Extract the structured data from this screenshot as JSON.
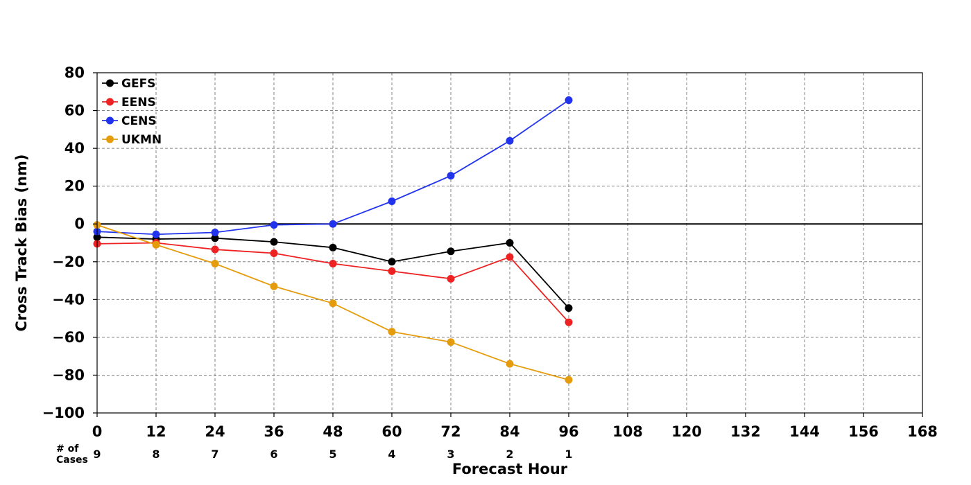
{
  "chart_data": {
    "type": "line",
    "title": "",
    "xlabel": "Forecast Hour",
    "ylabel": "Cross Track Bias (nm)",
    "xlim": [
      0,
      168
    ],
    "ylim": [
      -100,
      80
    ],
    "x_ticks": [
      0,
      12,
      24,
      36,
      48,
      60,
      72,
      84,
      96,
      108,
      120,
      132,
      144,
      156,
      168
    ],
    "y_ticks": [
      80,
      60,
      40,
      20,
      0,
      -20,
      -40,
      -60,
      -80,
      -100
    ],
    "y_tick_labels": [
      "80",
      "60",
      "40",
      "20",
      "0",
      "−20",
      "−40",
      "−60",
      "−80",
      "−100"
    ],
    "grid": true,
    "legend_position": "top-left",
    "zero_line": true,
    "cases_label": "# of\nCases",
    "cases_x": [
      0,
      12,
      24,
      36,
      48,
      60,
      72,
      84,
      96
    ],
    "cases": [
      9,
      8,
      7,
      6,
      5,
      4,
      3,
      2,
      1
    ],
    "x": [
      0,
      12,
      24,
      36,
      48,
      60,
      72,
      84,
      96
    ],
    "series": [
      {
        "name": "GEFS",
        "color": "#000000",
        "values": [
          -7,
          -8,
          -7.5,
          -9.5,
          -12.5,
          -20,
          -14.5,
          -10,
          -44.5
        ]
      },
      {
        "name": "EENS",
        "color": "#ee2222",
        "values": [
          -10.5,
          -10,
          -13.5,
          -15.5,
          -21,
          -25,
          -29,
          -17.5,
          -52
        ]
      },
      {
        "name": "CENS",
        "color": "#2233ee",
        "values": [
          -4,
          -5.5,
          -4.5,
          -0.5,
          0,
          12,
          25.5,
          44,
          65.5
        ]
      },
      {
        "name": "UKMN",
        "color": "#e59c0c",
        "values": [
          -0.5,
          -11,
          -21,
          -33,
          -42,
          -57,
          -62.5,
          -74,
          -82.5
        ]
      }
    ]
  }
}
